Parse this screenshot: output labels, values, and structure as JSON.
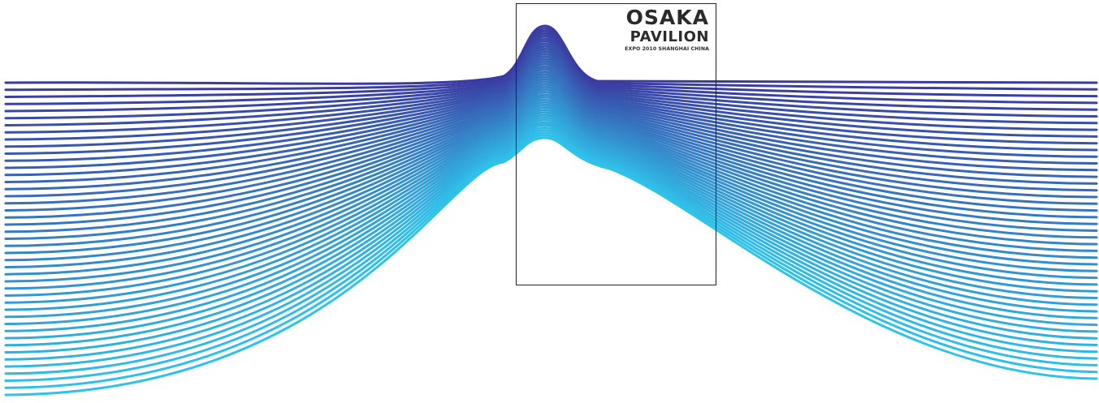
{
  "poster": {
    "title": "OSAKA",
    "subtitle": "PAVILION",
    "caption": "EXPO 2010 SHANGHAI CHINA"
  },
  "artwork": {
    "line_count": 45,
    "color_top": "#3a3aa0",
    "color_bottom": "#2fc3ea",
    "color_peak_top": "#23239a",
    "color_peak_bottom": "#16b6ee",
    "frame_color": "#222222"
  }
}
